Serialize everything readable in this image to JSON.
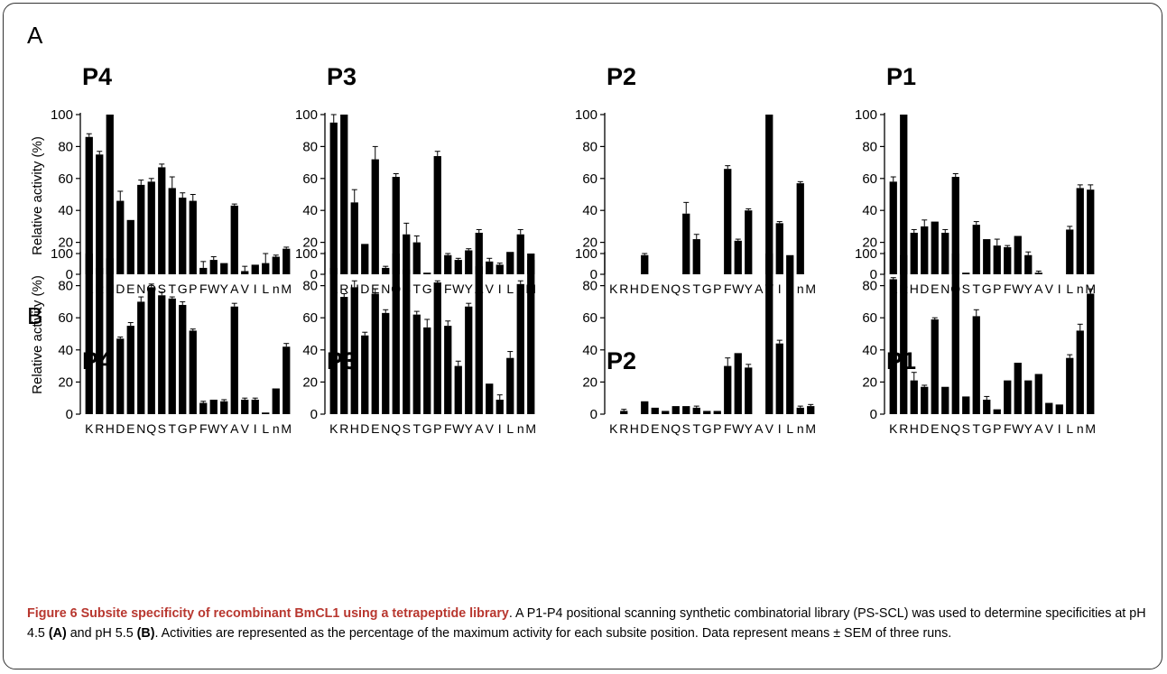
{
  "panels": [
    {
      "letter": "A",
      "ylabel": "Relative activity (%)"
    },
    {
      "letter": "B",
      "ylabel": "Relative activity (%)"
    }
  ],
  "chart_data": [
    {
      "panel": "A",
      "type": "bar",
      "title": "P4",
      "categories": [
        "K",
        "R",
        "H",
        "D",
        "E",
        "N",
        "Q",
        "S",
        "T",
        "G",
        "P",
        "F",
        "W",
        "Y",
        "A",
        "V",
        "I",
        "L",
        "n",
        "M"
      ],
      "values": [
        86,
        75,
        100,
        46,
        34,
        56,
        58,
        67,
        54,
        48,
        46,
        4,
        9,
        7,
        43,
        2,
        6,
        7,
        11,
        16
      ],
      "errors": [
        2,
        2,
        0,
        6,
        0,
        3,
        2,
        2,
        7,
        3,
        4,
        4,
        2,
        0,
        1,
        3,
        0,
        6,
        1,
        1
      ],
      "ylim": [
        0,
        100
      ],
      "yticks": [
        0,
        20,
        40,
        60,
        80,
        100
      ]
    },
    {
      "panel": "A",
      "type": "bar",
      "title": "P3",
      "categories": [
        "K",
        "R",
        "H",
        "D",
        "E",
        "N",
        "Q",
        "S",
        "T",
        "G",
        "P",
        "F",
        "W",
        "Y",
        "A",
        "V",
        "I",
        "L",
        "n",
        "M"
      ],
      "values": [
        95,
        100,
        45,
        19,
        72,
        4,
        61,
        25,
        20,
        1,
        74,
        12,
        9,
        15,
        26,
        8,
        6,
        14,
        25,
        9
      ],
      "errors": [
        5,
        0,
        8,
        0,
        8,
        1,
        2,
        7,
        4,
        0,
        3,
        1,
        1,
        1,
        2,
        2,
        1,
        0,
        3,
        1
      ],
      "ylim": [
        0,
        100
      ],
      "yticks": [
        0,
        20,
        40,
        60,
        80,
        100
      ]
    },
    {
      "panel": "A",
      "type": "bar",
      "title": "P2",
      "categories": [
        "K",
        "R",
        "H",
        "D",
        "E",
        "N",
        "Q",
        "S",
        "T",
        "G",
        "P",
        "F",
        "W",
        "Y",
        "A",
        "V",
        "I",
        "L",
        "n",
        "M"
      ],
      "values": [
        0,
        0,
        0,
        12,
        0,
        0,
        0,
        38,
        22,
        0,
        0,
        66,
        21,
        40,
        0,
        100,
        32,
        0,
        57,
        0
      ],
      "errors": [
        0,
        0,
        0,
        1,
        0,
        0,
        0,
        7,
        3,
        0,
        0,
        2,
        1,
        1,
        0,
        0,
        1,
        0,
        1,
        0
      ],
      "ylim": [
        0,
        100
      ],
      "yticks": [
        0,
        20,
        40,
        60,
        80,
        100
      ]
    },
    {
      "panel": "A",
      "type": "bar",
      "title": "P1",
      "categories": [
        "K",
        "R",
        "H",
        "D",
        "E",
        "N",
        "Q",
        "S",
        "T",
        "G",
        "P",
        "F",
        "W",
        "Y",
        "A",
        "V",
        "I",
        "L",
        "n",
        "M"
      ],
      "values": [
        58,
        100,
        26,
        30,
        33,
        26,
        61,
        1,
        31,
        22,
        18,
        17,
        24,
        12,
        1,
        0,
        0,
        28,
        54,
        53
      ],
      "errors": [
        3,
        0,
        2,
        4,
        0,
        2,
        2,
        0,
        2,
        0,
        4,
        1,
        0,
        2,
        1,
        0,
        0,
        2,
        2,
        3
      ],
      "ylim": [
        0,
        100
      ],
      "yticks": [
        0,
        20,
        40,
        60,
        80,
        100
      ]
    },
    {
      "panel": "B",
      "type": "bar",
      "title": "P4",
      "categories": [
        "K",
        "R",
        "H",
        "D",
        "E",
        "N",
        "Q",
        "S",
        "T",
        "G",
        "P",
        "F",
        "W",
        "Y",
        "A",
        "V",
        "I",
        "L",
        "n",
        "M"
      ],
      "values": [
        100,
        91,
        97,
        47,
        55,
        70,
        79,
        74,
        72,
        68,
        52,
        7,
        9,
        8,
        67,
        9,
        9,
        1,
        16,
        42
      ],
      "errors": [
        0,
        2,
        2,
        1,
        2,
        3,
        2,
        2,
        1,
        2,
        1,
        1,
        0,
        1,
        2,
        1,
        1,
        0,
        0,
        2
      ],
      "ylim": [
        0,
        100
      ],
      "yticks": [
        0,
        20,
        40,
        60,
        80,
        100
      ]
    },
    {
      "panel": "B",
      "type": "bar",
      "title": "P3",
      "categories": [
        "K",
        "R",
        "H",
        "D",
        "E",
        "N",
        "Q",
        "S",
        "T",
        "G",
        "P",
        "F",
        "W",
        "Y",
        "A",
        "V",
        "I",
        "L",
        "n",
        "M"
      ],
      "values": [
        91,
        73,
        79,
        49,
        75,
        63,
        100,
        90,
        62,
        54,
        82,
        55,
        30,
        67,
        92,
        19,
        9,
        35,
        81,
        100
      ],
      "errors": [
        3,
        2,
        4,
        2,
        3,
        2,
        0,
        3,
        2,
        5,
        1,
        3,
        3,
        2,
        3,
        0,
        3,
        4,
        2,
        0
      ],
      "ylim": [
        0,
        100
      ],
      "yticks": [
        0,
        20,
        40,
        60,
        80,
        100
      ]
    },
    {
      "panel": "B",
      "type": "bar",
      "title": "P2",
      "categories": [
        "K",
        "R",
        "H",
        "D",
        "E",
        "N",
        "Q",
        "S",
        "T",
        "G",
        "P",
        "F",
        "W",
        "Y",
        "A",
        "V",
        "I",
        "L",
        "n",
        "M"
      ],
      "values": [
        0,
        2,
        0,
        8,
        4,
        2,
        5,
        5,
        4,
        2,
        2,
        30,
        38,
        29,
        0,
        100,
        44,
        99,
        4,
        5
      ],
      "errors": [
        0,
        1,
        0,
        0,
        0,
        0,
        0,
        0,
        1,
        0,
        0,
        5,
        0,
        2,
        0,
        0,
        2,
        0,
        1,
        1
      ],
      "ylim": [
        0,
        100
      ],
      "yticks": [
        0,
        20,
        40,
        60,
        80,
        100
      ]
    },
    {
      "panel": "B",
      "type": "bar",
      "title": "P1",
      "categories": [
        "K",
        "R",
        "H",
        "D",
        "E",
        "N",
        "Q",
        "S",
        "T",
        "G",
        "P",
        "F",
        "W",
        "Y",
        "A",
        "V",
        "I",
        "L",
        "n",
        "M"
      ],
      "values": [
        84,
        99,
        21,
        17,
        59,
        17,
        100,
        11,
        61,
        9,
        3,
        21,
        32,
        21,
        25,
        7,
        6,
        35,
        52,
        75
      ],
      "errors": [
        1,
        0,
        5,
        1,
        1,
        0,
        0,
        0,
        4,
        2,
        0,
        0,
        0,
        0,
        0,
        0,
        0,
        2,
        4,
        3
      ],
      "ylim": [
        0,
        100
      ],
      "yticks": [
        0,
        20,
        40,
        60,
        80,
        100
      ]
    }
  ],
  "caption": {
    "title": "Figure 6 Subsite specificity of recombinant BmCL1 using a tetrapeptide library",
    "part1": ". A P1-P4 positional scanning synthetic combinatorial library (PS-SCL) was used to determine specificities at pH 4.5 ",
    "bold_a": "(A)",
    "part2": " and pH 5.5 ",
    "bold_b": "(B)",
    "part3": ". Activities are represented as the percentage of the maximum activity for each subsite position. Data represent means ± SEM of three runs."
  }
}
